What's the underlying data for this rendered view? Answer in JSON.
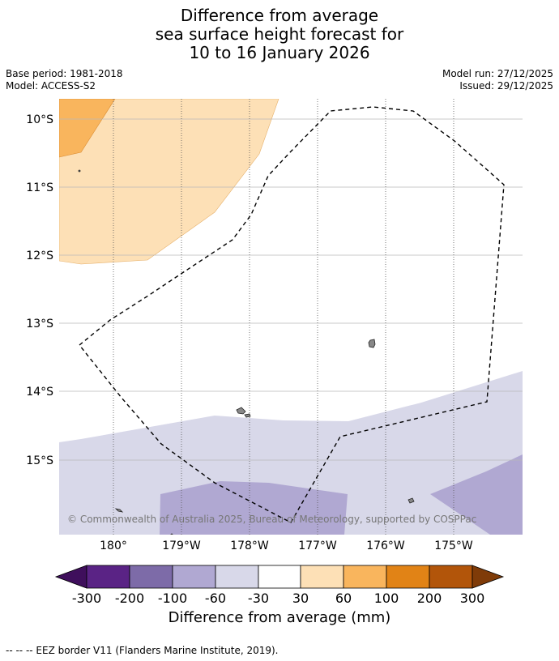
{
  "title": {
    "line1": "Difference from average",
    "line2": "sea surface height forecast for",
    "line3": "10 to 16 January 2026"
  },
  "meta": {
    "base_period": "Base period: 1981-2018",
    "model": "Model: ACCESS-S2",
    "model_run": "Model run: 27/12/2025",
    "issued": "Issued: 29/12/2025"
  },
  "map": {
    "lat_labels": [
      "10°S",
      "11°S",
      "12°S",
      "13°S",
      "14°S",
      "15°S"
    ],
    "lon_labels": [
      "180°",
      "179°W",
      "178°W",
      "177°W",
      "176°W",
      "175°W"
    ],
    "copyright": "© Commonwealth of Australia 2025, Bureau of Meteorology, supported by COSPPac"
  },
  "colorbar": {
    "ticks": [
      "-300",
      "-200",
      "-100",
      "-60",
      "-30",
      "30",
      "60",
      "100",
      "200",
      "300"
    ],
    "colors": {
      "below_min": "#3f0f5c",
      "c_m300_m200": "#5a2385",
      "c_m200_m100": "#7d6ba8",
      "c_m100_m60": "#b0a8d2",
      "c_m60_m30": "#d8d8e9",
      "c_m30_30": "#ffffff",
      "c_30_60": "#fde0b6",
      "c_60_100": "#f9b55d",
      "c_100_200": "#e18316",
      "c_200_300": "#b2550a",
      "above_max": "#7f3b08"
    },
    "label": "Difference from average (mm)"
  },
  "footer": {
    "legend_text": "--  --  -- EEZ border V11 (Flanders Marine Institute, 2019)."
  }
}
